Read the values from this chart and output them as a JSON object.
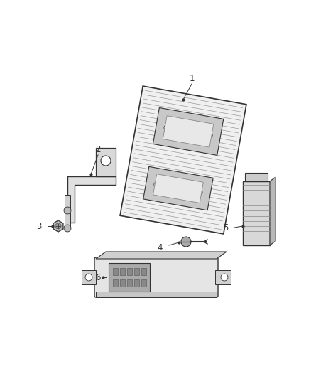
{
  "background_color": "#ffffff",
  "fig_width": 4.38,
  "fig_height": 5.33,
  "dpi": 100,
  "line_color": "#333333",
  "part_edge": "#333333",
  "label_fontsize": 8.5
}
